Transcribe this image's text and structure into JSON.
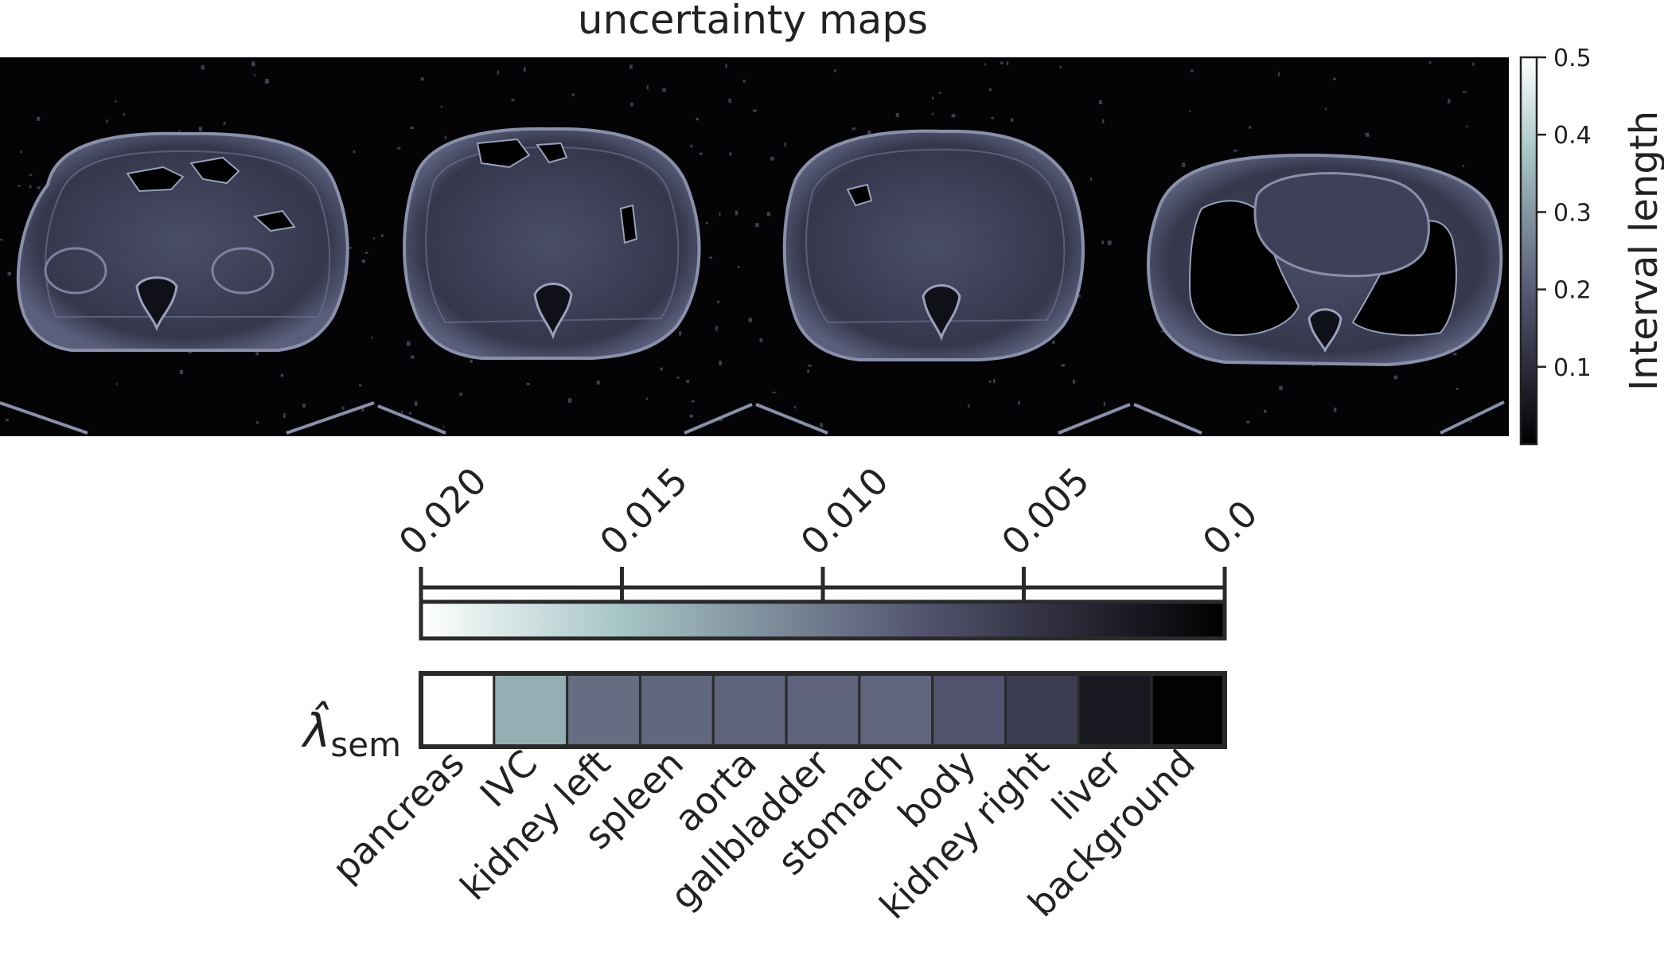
{
  "chart_data": [
    {
      "type": "heatmap",
      "title": "uncertainty maps",
      "panels": 4,
      "colorbar": {
        "label": "Interval length",
        "ticks": [
          0.5,
          0.4,
          0.3,
          0.2,
          0.1
        ],
        "tick_labels": [
          "0.5",
          "0.4",
          "0.3",
          "0.2",
          "0.1"
        ],
        "range": [
          0.0,
          0.5
        ],
        "colormap": "bone"
      }
    },
    {
      "type": "heatmap",
      "ylabel_base": "λ̂",
      "ylabel_sub": "sem",
      "scale_ticks": [
        "0.020",
        "0.015",
        "0.010",
        "0.005",
        "0.0"
      ],
      "scale_tick_values": [
        0.02,
        0.015,
        0.01,
        0.005,
        0.0
      ],
      "scale_range": [
        0.0,
        0.02
      ],
      "scale_reversed": true,
      "categories": [
        "pancreas",
        "IVC",
        "kidney left",
        "spleen",
        "aorta",
        "gallbladder",
        "stomach",
        "body",
        "kidney right",
        "liver",
        "background"
      ],
      "values": [
        0.02,
        0.0135,
        0.0092,
        0.0088,
        0.0086,
        0.0085,
        0.0087,
        0.0074,
        0.0055,
        0.0022,
        0.0002
      ]
    }
  ],
  "colors": {
    "panel_background": "#040406",
    "tissue": "#3c3e55",
    "outline": "#8a90aa",
    "air": "#000000",
    "text": "#222222"
  }
}
